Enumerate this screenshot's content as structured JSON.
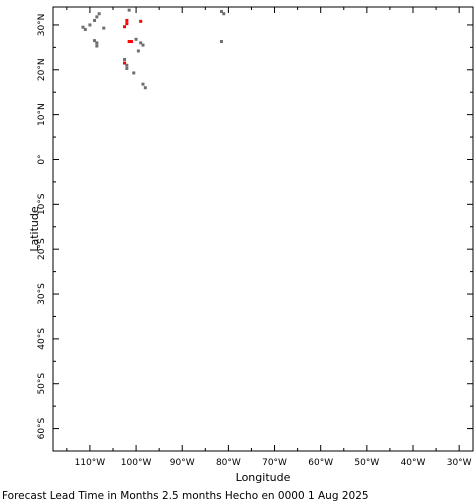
{
  "map": {
    "type": "scatter",
    "xlabel": "Longitude",
    "ylabel": "Latitude",
    "caption": "Forecast Lead Time in Months 2.5 months Hecho en 0000 1 Aug 2025",
    "xlim": [
      -118,
      -27
    ],
    "ylim": [
      -65,
      34
    ],
    "x_ticks": [
      {
        "value": -110,
        "label": "110°W"
      },
      {
        "value": -100,
        "label": "100°W"
      },
      {
        "value": -90,
        "label": "90°W"
      },
      {
        "value": -80,
        "label": "80°W"
      },
      {
        "value": -70,
        "label": "70°W"
      },
      {
        "value": -60,
        "label": "60°W"
      },
      {
        "value": -50,
        "label": "50°W"
      },
      {
        "value": -40,
        "label": "40°W"
      },
      {
        "value": -30,
        "label": "30°W"
      }
    ],
    "y_ticks": [
      {
        "value": 30,
        "label": "30°N"
      },
      {
        "value": 20,
        "label": "20°N"
      },
      {
        "value": 10,
        "label": "10°N"
      },
      {
        "value": 0,
        "label": "0°"
      },
      {
        "value": -10,
        "label": "10°S"
      },
      {
        "value": -20,
        "label": "20°S"
      },
      {
        "value": -30,
        "label": "30°S"
      },
      {
        "value": -40,
        "label": "40°S"
      },
      {
        "value": -50,
        "label": "50°S"
      },
      {
        "value": -60,
        "label": "60°S"
      }
    ],
    "colors": {
      "gray": "#6e6e6e",
      "red": "#ff0000"
    },
    "points": [
      {
        "lon": -111.5,
        "lat": 29.5,
        "color": "gray"
      },
      {
        "lon": -111.0,
        "lat": 29.0,
        "color": "gray"
      },
      {
        "lon": -110.0,
        "lat": 30.0,
        "color": "gray"
      },
      {
        "lon": -109.0,
        "lat": 31.0,
        "color": "gray"
      },
      {
        "lon": -108.5,
        "lat": 31.8,
        "color": "gray"
      },
      {
        "lon": -108.0,
        "lat": 32.5,
        "color": "gray"
      },
      {
        "lon": -107.0,
        "lat": 29.3,
        "color": "gray"
      },
      {
        "lon": -109.0,
        "lat": 26.5,
        "color": "gray"
      },
      {
        "lon": -108.5,
        "lat": 26.0,
        "color": "gray"
      },
      {
        "lon": -108.5,
        "lat": 25.3,
        "color": "gray"
      },
      {
        "lon": -101.5,
        "lat": 33.3,
        "color": "gray"
      },
      {
        "lon": -102.0,
        "lat": 31.0,
        "color": "red"
      },
      {
        "lon": -102.0,
        "lat": 30.3,
        "color": "red"
      },
      {
        "lon": -102.5,
        "lat": 29.6,
        "color": "red"
      },
      {
        "lon": -99.0,
        "lat": 30.8,
        "color": "red"
      },
      {
        "lon": -101.5,
        "lat": 26.3,
        "color": "red"
      },
      {
        "lon": -101.0,
        "lat": 26.3,
        "color": "red"
      },
      {
        "lon": -100.0,
        "lat": 26.8,
        "color": "gray"
      },
      {
        "lon": -99.0,
        "lat": 26.0,
        "color": "gray"
      },
      {
        "lon": -98.5,
        "lat": 25.5,
        "color": "gray"
      },
      {
        "lon": -99.5,
        "lat": 24.2,
        "color": "gray"
      },
      {
        "lon": -102.5,
        "lat": 22.3,
        "color": "gray"
      },
      {
        "lon": -102.5,
        "lat": 21.5,
        "color": "red"
      },
      {
        "lon": -102.0,
        "lat": 21.0,
        "color": "gray"
      },
      {
        "lon": -102.0,
        "lat": 20.3,
        "color": "gray"
      },
      {
        "lon": -100.5,
        "lat": 19.3,
        "color": "gray"
      },
      {
        "lon": -98.5,
        "lat": 16.8,
        "color": "gray"
      },
      {
        "lon": -98.0,
        "lat": 16.0,
        "color": "gray"
      },
      {
        "lon": -81.5,
        "lat": 33.0,
        "color": "gray"
      },
      {
        "lon": -81.0,
        "lat": 32.5,
        "color": "gray"
      },
      {
        "lon": -81.5,
        "lat": 26.3,
        "color": "gray"
      }
    ]
  }
}
